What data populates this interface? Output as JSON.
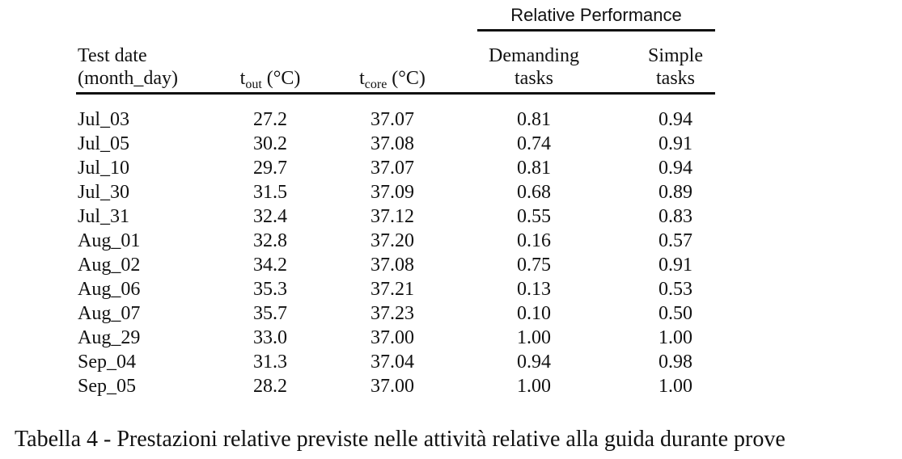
{
  "table": {
    "group_header": "Relative Performance",
    "headers": {
      "date_line1": "Test date",
      "date_line2": "(month_day)",
      "tout_base": "t",
      "tout_sub": "out",
      "tout_unit": " (°C)",
      "tcore_base": "t",
      "tcore_sub": "core",
      "tcore_unit": " (°C)",
      "demanding_line1": "Demanding",
      "demanding_line2": "tasks",
      "simple_line1": "Simple",
      "simple_line2": "tasks"
    },
    "rows": [
      {
        "date": "Jul_03",
        "tout": "27.2",
        "tcore": "37.07",
        "demanding": "0.81",
        "simple": "0.94"
      },
      {
        "date": "Jul_05",
        "tout": "30.2",
        "tcore": "37.08",
        "demanding": "0.74",
        "simple": "0.91"
      },
      {
        "date": "Jul_10",
        "tout": "29.7",
        "tcore": "37.07",
        "demanding": "0.81",
        "simple": "0.94"
      },
      {
        "date": "Jul_30",
        "tout": "31.5",
        "tcore": "37.09",
        "demanding": "0.68",
        "simple": "0.89"
      },
      {
        "date": "Jul_31",
        "tout": "32.4",
        "tcore": "37.12",
        "demanding": "0.55",
        "simple": "0.83"
      },
      {
        "date": "Aug_01",
        "tout": "32.8",
        "tcore": "37.20",
        "demanding": "0.16",
        "simple": "0.57"
      },
      {
        "date": "Aug_02",
        "tout": "34.2",
        "tcore": "37.08",
        "demanding": "0.75",
        "simple": "0.91"
      },
      {
        "date": "Aug_06",
        "tout": "35.3",
        "tcore": "37.21",
        "demanding": "0.13",
        "simple": "0.53"
      },
      {
        "date": "Aug_07",
        "tout": "35.7",
        "tcore": "37.23",
        "demanding": "0.10",
        "simple": "0.50"
      },
      {
        "date": "Aug_29",
        "tout": "33.0",
        "tcore": "37.00",
        "demanding": "1.00",
        "simple": "1.00"
      },
      {
        "date": "Sep_04",
        "tout": "31.3",
        "tcore": "37.04",
        "demanding": "0.94",
        "simple": "0.98"
      },
      {
        "date": "Sep_05",
        "tout": "28.2",
        "tcore": "37.00",
        "demanding": "1.00",
        "simple": "1.00"
      }
    ]
  },
  "caption": "Tabella 4 - Prestazioni relative previste nelle attività relative alla guida durante prove"
}
